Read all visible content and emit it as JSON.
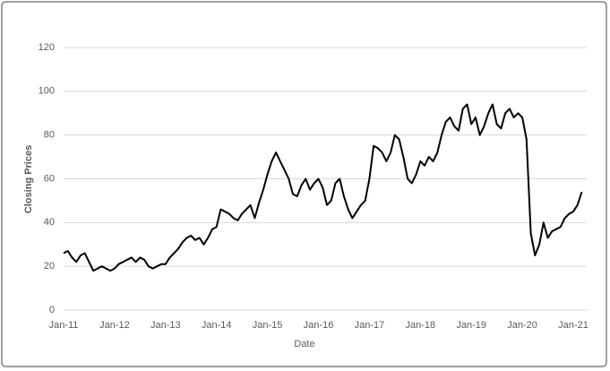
{
  "chart_data": {
    "type": "line",
    "y_label": "Closing Prices",
    "x_label": "Date",
    "categories": [
      "Jan-11",
      null,
      null,
      null,
      null,
      null,
      null,
      null,
      null,
      null,
      null,
      null,
      "Jan-12",
      null,
      null,
      null,
      null,
      null,
      null,
      null,
      null,
      null,
      null,
      null,
      "Jan-13",
      null,
      null,
      null,
      null,
      null,
      null,
      null,
      null,
      null,
      null,
      null,
      "Jan-14",
      null,
      null,
      null,
      null,
      null,
      null,
      null,
      null,
      null,
      null,
      null,
      "Jan-15",
      null,
      null,
      null,
      null,
      null,
      null,
      null,
      null,
      null,
      null,
      null,
      "Jan-16",
      null,
      null,
      null,
      null,
      null,
      null,
      null,
      null,
      null,
      null,
      null,
      "Jan-17",
      null,
      null,
      null,
      null,
      null,
      null,
      null,
      null,
      null,
      null,
      null,
      "Jan-18",
      null,
      null,
      null,
      null,
      null,
      null,
      null,
      null,
      null,
      null,
      null,
      "Jan-19",
      null,
      null,
      null,
      null,
      null,
      null,
      null,
      null,
      null,
      null,
      null,
      "Jan-20",
      null,
      null,
      null,
      null,
      null,
      null,
      null,
      null,
      null,
      null,
      null,
      "Jan-21",
      null,
      null
    ],
    "values": [
      26,
      27,
      24,
      22,
      25,
      26,
      22,
      18,
      19,
      20,
      19,
      18,
      19,
      21,
      22,
      23,
      24,
      22,
      24,
      23,
      20,
      19,
      20,
      21,
      21,
      24,
      26,
      28,
      31,
      33,
      34,
      32,
      33,
      30,
      33,
      37,
      38,
      46,
      45,
      44,
      42,
      41,
      44,
      46,
      48,
      42,
      49,
      55,
      62,
      68,
      72,
      68,
      64,
      60,
      53,
      52,
      57,
      60,
      55,
      58,
      60,
      56,
      48,
      50,
      58,
      60,
      52,
      46,
      42,
      45,
      48,
      50,
      60,
      75,
      74,
      72,
      68,
      72,
      80,
      78,
      70,
      60,
      58,
      62,
      68,
      66,
      70,
      68,
      72,
      80,
      86,
      88,
      84,
      82,
      92,
      94,
      85,
      88,
      80,
      84,
      90,
      94,
      85,
      83,
      90,
      92,
      88,
      90,
      88,
      78,
      35,
      25,
      30,
      40,
      33,
      36,
      37,
      38,
      42,
      44,
      45,
      48,
      54
    ],
    "color": "#000000",
    "ylim": [
      0,
      120
    ],
    "yticks": [
      0,
      20,
      40,
      60,
      80,
      100,
      120
    ],
    "grid": true
  }
}
